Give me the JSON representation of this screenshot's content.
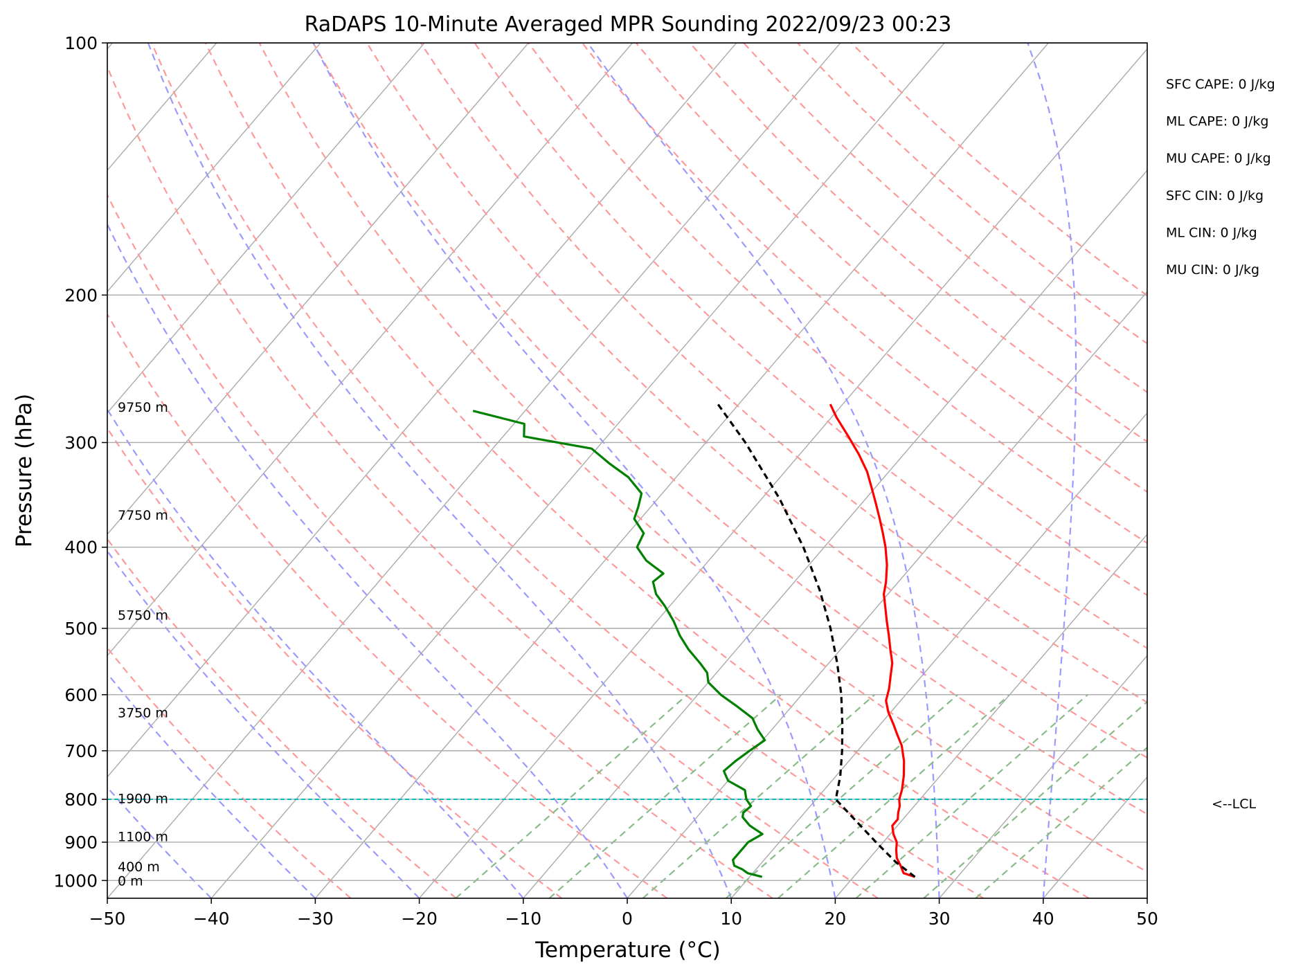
{
  "chart_data": {
    "type": "line",
    "subtype": "skew-T log-P sounding",
    "title": "RaDAPS 10-Minute Averaged MPR Sounding 2022/09/23 00:23",
    "xlabel": "Temperature (°C)",
    "ylabel": "Pressure (hPa)",
    "xlim": [
      -50,
      50
    ],
    "ylim": [
      1050,
      100
    ],
    "y_scale": "log",
    "x_ticks": [
      -50,
      -40,
      -30,
      -20,
      -10,
      0,
      10,
      20,
      30,
      40,
      50
    ],
    "x_tick_labels": [
      "−50",
      "−40",
      "−30",
      "−20",
      "−10",
      "0",
      "10",
      "20",
      "30",
      "40",
      "50"
    ],
    "y_ticks": [
      1000,
      900,
      800,
      700,
      600,
      500,
      400,
      300,
      200,
      100
    ],
    "y_tick_labels": [
      "1000",
      "900",
      "800",
      "700",
      "600",
      "500",
      "400",
      "300",
      "200",
      "100"
    ],
    "grid": true,
    "skew": 30,
    "series": [
      {
        "kind": "temperature",
        "color": "#ff0000",
        "points": [
          [
            990,
            25.9
          ],
          [
            980,
            24.5
          ],
          [
            960,
            23.6
          ],
          [
            940,
            22.6
          ],
          [
            920,
            21.9
          ],
          [
            900,
            21.3
          ],
          [
            880,
            20.3
          ],
          [
            860,
            19.5
          ],
          [
            845,
            19.5
          ],
          [
            830,
            19.0
          ],
          [
            815,
            18.6
          ],
          [
            800,
            18.0
          ],
          [
            780,
            17.5
          ],
          [
            750,
            16.5
          ],
          [
            720,
            15.3
          ],
          [
            690,
            13.8
          ],
          [
            670,
            12.5
          ],
          [
            650,
            11.2
          ],
          [
            630,
            9.8
          ],
          [
            610,
            8.6
          ],
          [
            590,
            7.9
          ],
          [
            570,
            7.0
          ],
          [
            550,
            6.1
          ],
          [
            530,
            4.8
          ],
          [
            510,
            3.5
          ],
          [
            490,
            2.1
          ],
          [
            470,
            0.7
          ],
          [
            455,
            -0.4
          ],
          [
            440,
            -1.2
          ],
          [
            420,
            -2.5
          ],
          [
            400,
            -4.1
          ],
          [
            385,
            -5.5
          ],
          [
            370,
            -7.0
          ],
          [
            355,
            -8.6
          ],
          [
            340,
            -10.3
          ],
          [
            325,
            -12.1
          ],
          [
            310,
            -14.3
          ],
          [
            295,
            -16.8
          ],
          [
            280,
            -19.5
          ],
          [
            270,
            -21.2
          ]
        ]
      },
      {
        "kind": "dewpoint",
        "color": "#008000",
        "points": [
          [
            990,
            11.2
          ],
          [
            980,
            9.5
          ],
          [
            970,
            8.7
          ],
          [
            960,
            7.6
          ],
          [
            945,
            7.0
          ],
          [
            925,
            7.0
          ],
          [
            900,
            7.0
          ],
          [
            880,
            7.7
          ],
          [
            860,
            5.8
          ],
          [
            840,
            4.4
          ],
          [
            830,
            4.1
          ],
          [
            815,
            4.3
          ],
          [
            800,
            3.3
          ],
          [
            780,
            2.4
          ],
          [
            760,
            0.0
          ],
          [
            740,
            -1.2
          ],
          [
            720,
            -0.9
          ],
          [
            700,
            -0.4
          ],
          [
            680,
            0.2
          ],
          [
            660,
            -1.4
          ],
          [
            640,
            -2.8
          ],
          [
            620,
            -5.2
          ],
          [
            600,
            -7.8
          ],
          [
            580,
            -10.0
          ],
          [
            565,
            -10.9
          ],
          [
            550,
            -12.4
          ],
          [
            530,
            -14.6
          ],
          [
            510,
            -16.6
          ],
          [
            490,
            -18.4
          ],
          [
            470,
            -20.5
          ],
          [
            455,
            -22.3
          ],
          [
            440,
            -23.6
          ],
          [
            430,
            -23.3
          ],
          [
            415,
            -26.0
          ],
          [
            400,
            -28.0
          ],
          [
            385,
            -28.5
          ],
          [
            370,
            -30.6
          ],
          [
            358,
            -31.2
          ],
          [
            345,
            -32.0
          ],
          [
            330,
            -34.6
          ],
          [
            318,
            -37.5
          ],
          [
            305,
            -40.5
          ],
          [
            295,
            -48.0
          ],
          [
            285,
            -49.0
          ],
          [
            275,
            -55.0
          ]
        ]
      },
      {
        "kind": "parcel",
        "color": "#000000",
        "points": [
          [
            990,
            25.9
          ],
          [
            950,
            22.8
          ],
          [
            900,
            19.3
          ],
          [
            850,
            15.7
          ],
          [
            800,
            11.9
          ],
          [
            750,
            10.4
          ],
          [
            700,
            8.5
          ],
          [
            650,
            6.3
          ],
          [
            600,
            3.8
          ],
          [
            550,
            0.8
          ],
          [
            500,
            -2.7
          ],
          [
            450,
            -6.9
          ],
          [
            400,
            -12.0
          ],
          [
            350,
            -18.3
          ],
          [
            300,
            -26.2
          ],
          [
            270,
            -32.0
          ]
        ]
      }
    ],
    "lcl_pressure": 800,
    "height_labels": [
      {
        "text": "9750 m",
        "pressure": 272
      },
      {
        "text": "7750 m",
        "pressure": 366
      },
      {
        "text": "5750 m",
        "pressure": 482
      },
      {
        "text": "3750 m",
        "pressure": 630
      },
      {
        "text": "1900 m",
        "pressure": 798
      },
      {
        "text": "1100 m",
        "pressure": 886
      },
      {
        "text": "400 m",
        "pressure": 962
      },
      {
        "text": "0 m",
        "pressure": 1000
      }
    ],
    "indices": [
      "SFC CAPE: 0 J/kg",
      "ML CAPE: 0 J/kg",
      "MU CAPE: 0 J/kg",
      "SFC CIN: 0 J/kg",
      "ML CIN: 0 J/kg",
      "MU CIN: 0 J/kg"
    ],
    "lcl_label": "<--LCL",
    "reference_lines": {
      "dry_adiabats_theta_C": [
        -30,
        -20,
        -10,
        0,
        10,
        20,
        30,
        40,
        50,
        60,
        70,
        80,
        90,
        100,
        110,
        120,
        130,
        140,
        150,
        160
      ],
      "moist_adiabats_start_C": [
        -40,
        -30,
        -20,
        -10,
        0,
        10,
        20,
        30,
        40
      ],
      "mixing_ratio_lines": [
        -16.5,
        -7.5,
        1.5,
        9.5,
        14.5,
        22,
        28.5,
        33.5
      ],
      "colors": {
        "isotherm": "#aaaaaa",
        "dry_adiabat": "#ff9999",
        "moist_adiabat": "#9999ff",
        "mixing_ratio": "#88bb88",
        "lcl": "#00bbbb"
      }
    }
  }
}
